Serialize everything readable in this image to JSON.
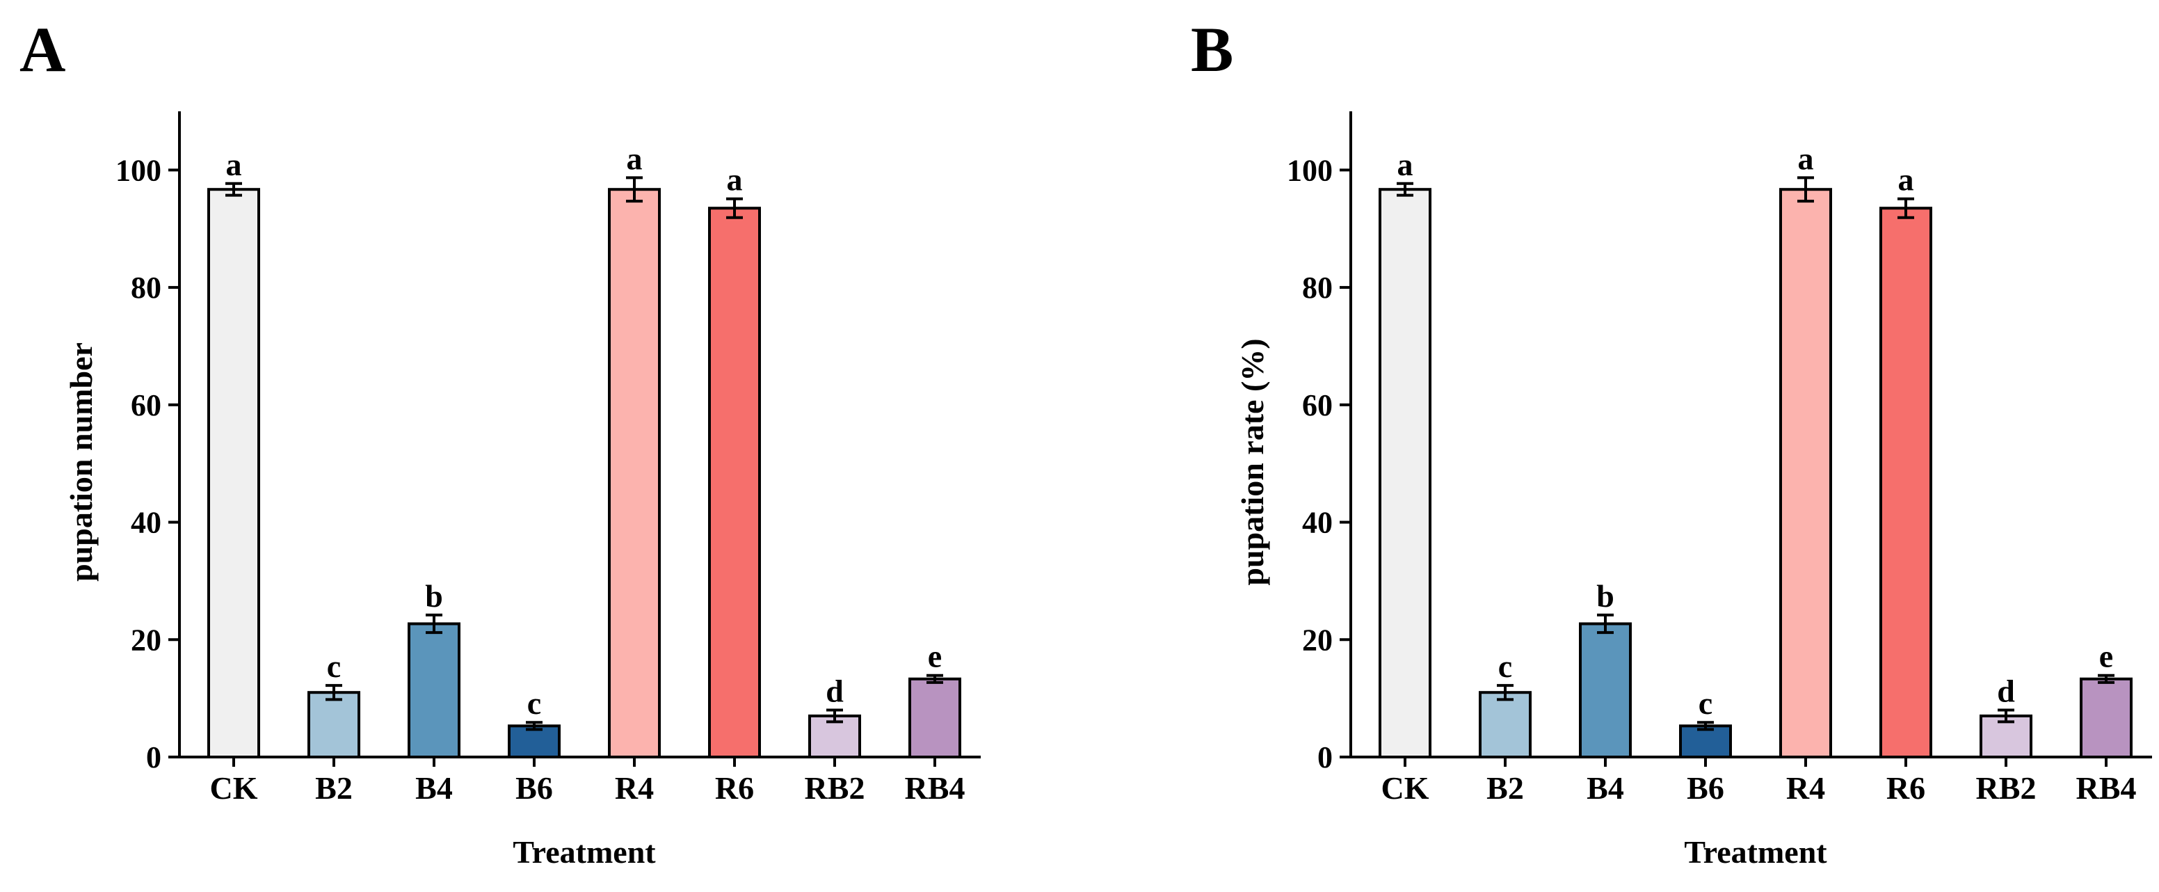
{
  "chart_data": [
    {
      "type": "bar",
      "panel_label": "A",
      "title": "",
      "xlabel": "Treatment",
      "ylabel": "pupation number",
      "ylim": [
        0,
        110
      ],
      "yticks": [
        0,
        20,
        40,
        60,
        80,
        100
      ],
      "grid": false,
      "legend": "none",
      "categories": [
        "CK",
        "B2",
        "B4",
        "B6",
        "R4",
        "R6",
        "RB2",
        "RB4"
      ],
      "values": [
        96.7,
        11.0,
        22.7,
        5.3,
        96.7,
        93.5,
        7.0,
        13.3
      ],
      "errors": [
        1.0,
        1.2,
        1.5,
        0.6,
        2.0,
        1.6,
        1.0,
        0.6
      ],
      "significance": [
        "a",
        "c",
        "b",
        "c",
        "a",
        "a",
        "d",
        "e"
      ],
      "colors": [
        "#f0f0f0",
        "#a3c4d8",
        "#5b95bb",
        "#225f98",
        "#fcb3ae",
        "#f66f6c",
        "#d8c6de",
        "#b893c0"
      ]
    },
    {
      "type": "bar",
      "panel_label": "B",
      "title": "",
      "xlabel": "Treatment",
      "ylabel": "pupation rate (%)",
      "ylim": [
        0,
        110
      ],
      "yticks": [
        0,
        20,
        40,
        60,
        80,
        100
      ],
      "grid": false,
      "legend": "none",
      "categories": [
        "CK",
        "B2",
        "B4",
        "B6",
        "R4",
        "R6",
        "RB2",
        "RB4"
      ],
      "values": [
        96.7,
        11.0,
        22.7,
        5.3,
        96.7,
        93.5,
        7.0,
        13.3
      ],
      "errors": [
        1.0,
        1.2,
        1.5,
        0.6,
        2.0,
        1.6,
        1.0,
        0.6
      ],
      "significance": [
        "a",
        "c",
        "b",
        "c",
        "a",
        "a",
        "d",
        "e"
      ],
      "colors": [
        "#f0f0f0",
        "#a3c4d8",
        "#5b95bb",
        "#225f98",
        "#fcb3ae",
        "#f66f6c",
        "#d8c6de",
        "#b893c0"
      ]
    }
  ]
}
